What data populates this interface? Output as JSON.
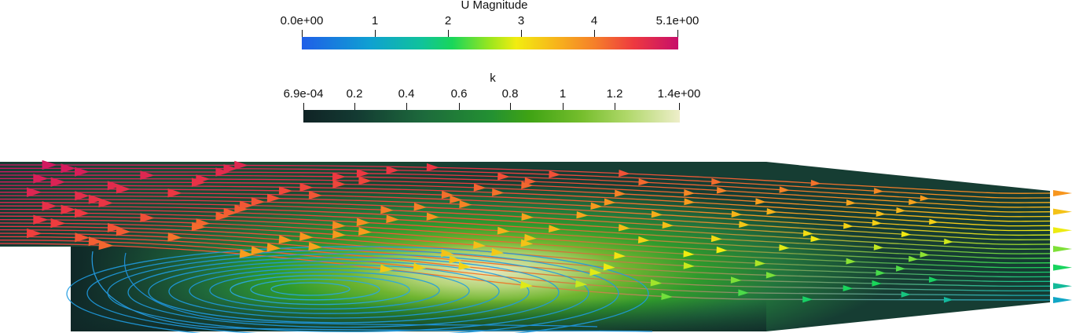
{
  "legends": {
    "u_magnitude": {
      "title": "U Magnitude",
      "ticks": [
        "0.0e+00",
        "1",
        "2",
        "3",
        "4",
        "5.1e+00"
      ],
      "range": [
        0.0,
        5.1
      ],
      "colors": [
        "#1f5ee8",
        "#10c39a",
        "#f2ec10",
        "#ee3a3f",
        "#c70e6a"
      ]
    },
    "k": {
      "title": "k",
      "ticks": [
        "6.9e-04",
        "0.2",
        "0.4",
        "0.6",
        "0.8",
        "1",
        "1.2",
        "1.4e+00"
      ],
      "range": [
        0.00069,
        1.4
      ],
      "colors": [
        "#102325",
        "#1d6a3c",
        "#239132",
        "#76be2d",
        "#eeeeca"
      ]
    }
  },
  "scene": {
    "description_icon": "backward-facing-step-flow-streamlines",
    "field_colored_by": "k",
    "streamlines_colored_by": "U Magnitude"
  }
}
